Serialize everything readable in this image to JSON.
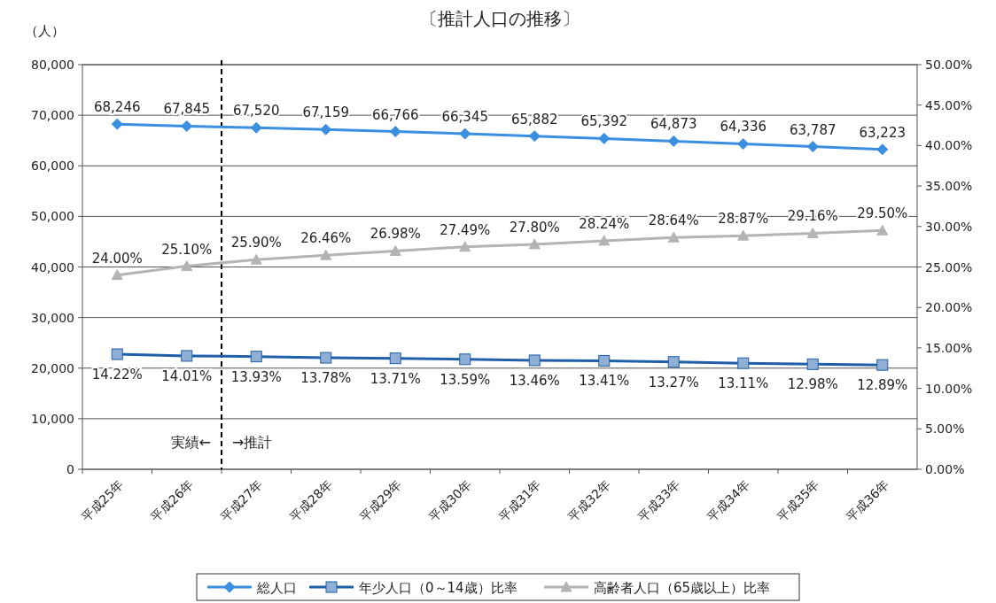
{
  "chart_data": {
    "type": "line",
    "title": "〔推計人口の推移〕",
    "ylabel": "（人）",
    "categories": [
      "平成25年",
      "平成26年",
      "平成27年",
      "平成28年",
      "平成29年",
      "平成30年",
      "平成31年",
      "平成32年",
      "平成33年",
      "平成34年",
      "平成35年",
      "平成36年"
    ],
    "series": [
      {
        "name": "総人口",
        "color": "#3a8fe0",
        "marker": "diamond",
        "values": [
          68246,
          67845,
          67520,
          67159,
          66766,
          66345,
          65882,
          65392,
          64873,
          64336,
          63787,
          63223
        ],
        "value_labels": [
          "68,246",
          "67,845",
          "67,520",
          "67,159",
          "66,766",
          "66,345",
          "65,882",
          "65,392",
          "64,873",
          "64,336",
          "63,787",
          "63,223"
        ]
      },
      {
        "name": "年少人口（0～14歳）比率",
        "color": "#1f5fa8",
        "marker": "square",
        "axis": "y2",
        "values": [
          14.22,
          14.01,
          13.93,
          13.78,
          13.71,
          13.59,
          13.46,
          13.41,
          13.27,
          13.11,
          12.98,
          12.89
        ],
        "value_labels": [
          "14.22%",
          "14.01%",
          "13.93%",
          "13.78%",
          "13.71%",
          "13.59%",
          "13.46%",
          "13.41%",
          "13.27%",
          "13.11%",
          "12.98%",
          "12.89%"
        ]
      },
      {
        "name": "高齢者人口（65歳以上）比率",
        "color": "#b4b4b4",
        "marker": "triangle",
        "axis": "y2",
        "values": [
          24.0,
          25.1,
          25.9,
          26.46,
          26.98,
          27.49,
          27.8,
          28.24,
          28.64,
          28.87,
          29.16,
          29.5
        ],
        "value_labels": [
          "24.00%",
          "25.10%",
          "25.90%",
          "26.46%",
          "26.98%",
          "27.49%",
          "27.80%",
          "28.24%",
          "28.64%",
          "28.87%",
          "29.16%",
          "29.50%"
        ]
      }
    ],
    "ylim": [
      0,
      80000
    ],
    "yticks": [
      0,
      {
        "value": 10000,
        "label": "10,000"
      },
      {
        "value": 20000,
        "label": "20,000"
      },
      {
        "value": 30000,
        "label": "30,000"
      },
      {
        "value": 40000,
        "label": "40,000"
      },
      {
        "value": 50000,
        "label": "50,000"
      },
      {
        "value": 60000,
        "label": "60,000"
      },
      {
        "value": 70000,
        "label": "70,000"
      },
      {
        "value": 80000,
        "label": "80,000"
      }
    ],
    "y2lim": [
      0,
      50
    ],
    "y2ticks": [
      {
        "value": 0,
        "label": "0.00%"
      },
      {
        "value": 5,
        "label": "5.00%"
      },
      {
        "value": 10,
        "label": "10.00%"
      },
      {
        "value": 15,
        "label": "15.00%"
      },
      {
        "value": 20,
        "label": "20.00%"
      },
      {
        "value": 25,
        "label": "25.00%"
      },
      {
        "value": 30,
        "label": "30.00%"
      },
      {
        "value": 35,
        "label": "35.00%"
      },
      {
        "value": 40,
        "label": "40.00%"
      },
      {
        "value": 45,
        "label": "45.00%"
      },
      {
        "value": 50,
        "label": "50.00%"
      }
    ],
    "annotations": [
      "実績←",
      "→推計"
    ],
    "grid": "y",
    "legend": "bottom"
  }
}
